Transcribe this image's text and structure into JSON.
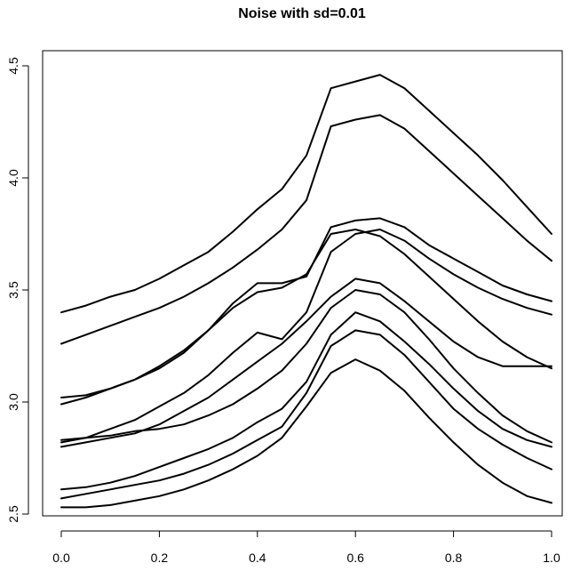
{
  "chart_data": {
    "type": "line",
    "title": "Noise with sd=0.01",
    "xlabel": "",
    "ylabel": "",
    "xlim": [
      0.0,
      1.0
    ],
    "ylim": [
      2.5,
      4.5
    ],
    "x_ticks": [
      "0.0",
      "0.2",
      "0.4",
      "0.6",
      "0.8",
      "1.0"
    ],
    "y_ticks": [
      "2.5",
      "3.0",
      "3.5",
      "4.0",
      "4.5"
    ],
    "grid": false,
    "legend": "none",
    "line_color": "#000000",
    "x": [
      0.0,
      0.05,
      0.1,
      0.15,
      0.2,
      0.25,
      0.3,
      0.35,
      0.4,
      0.45,
      0.5,
      0.55,
      0.6,
      0.65,
      0.7,
      0.75,
      0.8,
      0.85,
      0.9,
      0.95,
      1.0
    ],
    "series": [
      {
        "values": [
          3.4,
          3.43,
          3.47,
          3.5,
          3.55,
          3.61,
          3.67,
          3.76,
          3.86,
          3.95,
          4.1,
          4.4,
          4.43,
          4.46,
          4.4,
          4.3,
          4.2,
          4.1,
          3.99,
          3.87,
          3.75
        ]
      },
      {
        "values": [
          3.26,
          3.3,
          3.34,
          3.38,
          3.42,
          3.47,
          3.53,
          3.6,
          3.68,
          3.77,
          3.9,
          4.23,
          4.26,
          4.28,
          4.22,
          4.12,
          4.02,
          3.92,
          3.82,
          3.72,
          3.63
        ]
      },
      {
        "values": [
          3.02,
          3.03,
          3.06,
          3.1,
          3.16,
          3.23,
          3.32,
          3.44,
          3.53,
          3.53,
          3.56,
          3.78,
          3.81,
          3.82,
          3.78,
          3.7,
          3.64,
          3.58,
          3.52,
          3.48,
          3.45
        ]
      },
      {
        "values": [
          2.99,
          3.02,
          3.06,
          3.1,
          3.15,
          3.22,
          3.32,
          3.42,
          3.49,
          3.51,
          3.57,
          3.75,
          3.77,
          3.74,
          3.66,
          3.56,
          3.46,
          3.36,
          3.27,
          3.2,
          3.15
        ]
      },
      {
        "values": [
          2.82,
          2.84,
          2.88,
          2.92,
          2.98,
          3.04,
          3.12,
          3.22,
          3.31,
          3.28,
          3.4,
          3.67,
          3.75,
          3.77,
          3.72,
          3.64,
          3.57,
          3.51,
          3.46,
          3.42,
          3.39
        ]
      },
      {
        "values": [
          2.8,
          2.82,
          2.84,
          2.86,
          2.9,
          2.96,
          3.02,
          3.1,
          3.18,
          3.26,
          3.36,
          3.47,
          3.55,
          3.53,
          3.45,
          3.36,
          3.27,
          3.2,
          3.16,
          3.16,
          3.16
        ]
      },
      {
        "values": [
          2.83,
          2.84,
          2.85,
          2.87,
          2.88,
          2.9,
          2.94,
          2.99,
          3.06,
          3.14,
          3.26,
          3.42,
          3.5,
          3.48,
          3.4,
          3.28,
          3.15,
          3.04,
          2.94,
          2.87,
          2.82
        ]
      },
      {
        "values": [
          2.61,
          2.62,
          2.64,
          2.67,
          2.71,
          2.75,
          2.79,
          2.84,
          2.91,
          2.97,
          3.09,
          3.3,
          3.4,
          3.36,
          3.27,
          3.17,
          3.06,
          2.96,
          2.88,
          2.83,
          2.8
        ]
      },
      {
        "values": [
          2.57,
          2.59,
          2.61,
          2.63,
          2.65,
          2.68,
          2.72,
          2.77,
          2.83,
          2.89,
          3.04,
          3.25,
          3.32,
          3.3,
          3.21,
          3.09,
          2.97,
          2.88,
          2.81,
          2.75,
          2.7
        ]
      },
      {
        "values": [
          2.53,
          2.53,
          2.54,
          2.56,
          2.58,
          2.61,
          2.65,
          2.7,
          2.76,
          2.84,
          2.98,
          3.13,
          3.19,
          3.14,
          3.05,
          2.93,
          2.82,
          2.72,
          2.64,
          2.58,
          2.55
        ]
      }
    ]
  }
}
